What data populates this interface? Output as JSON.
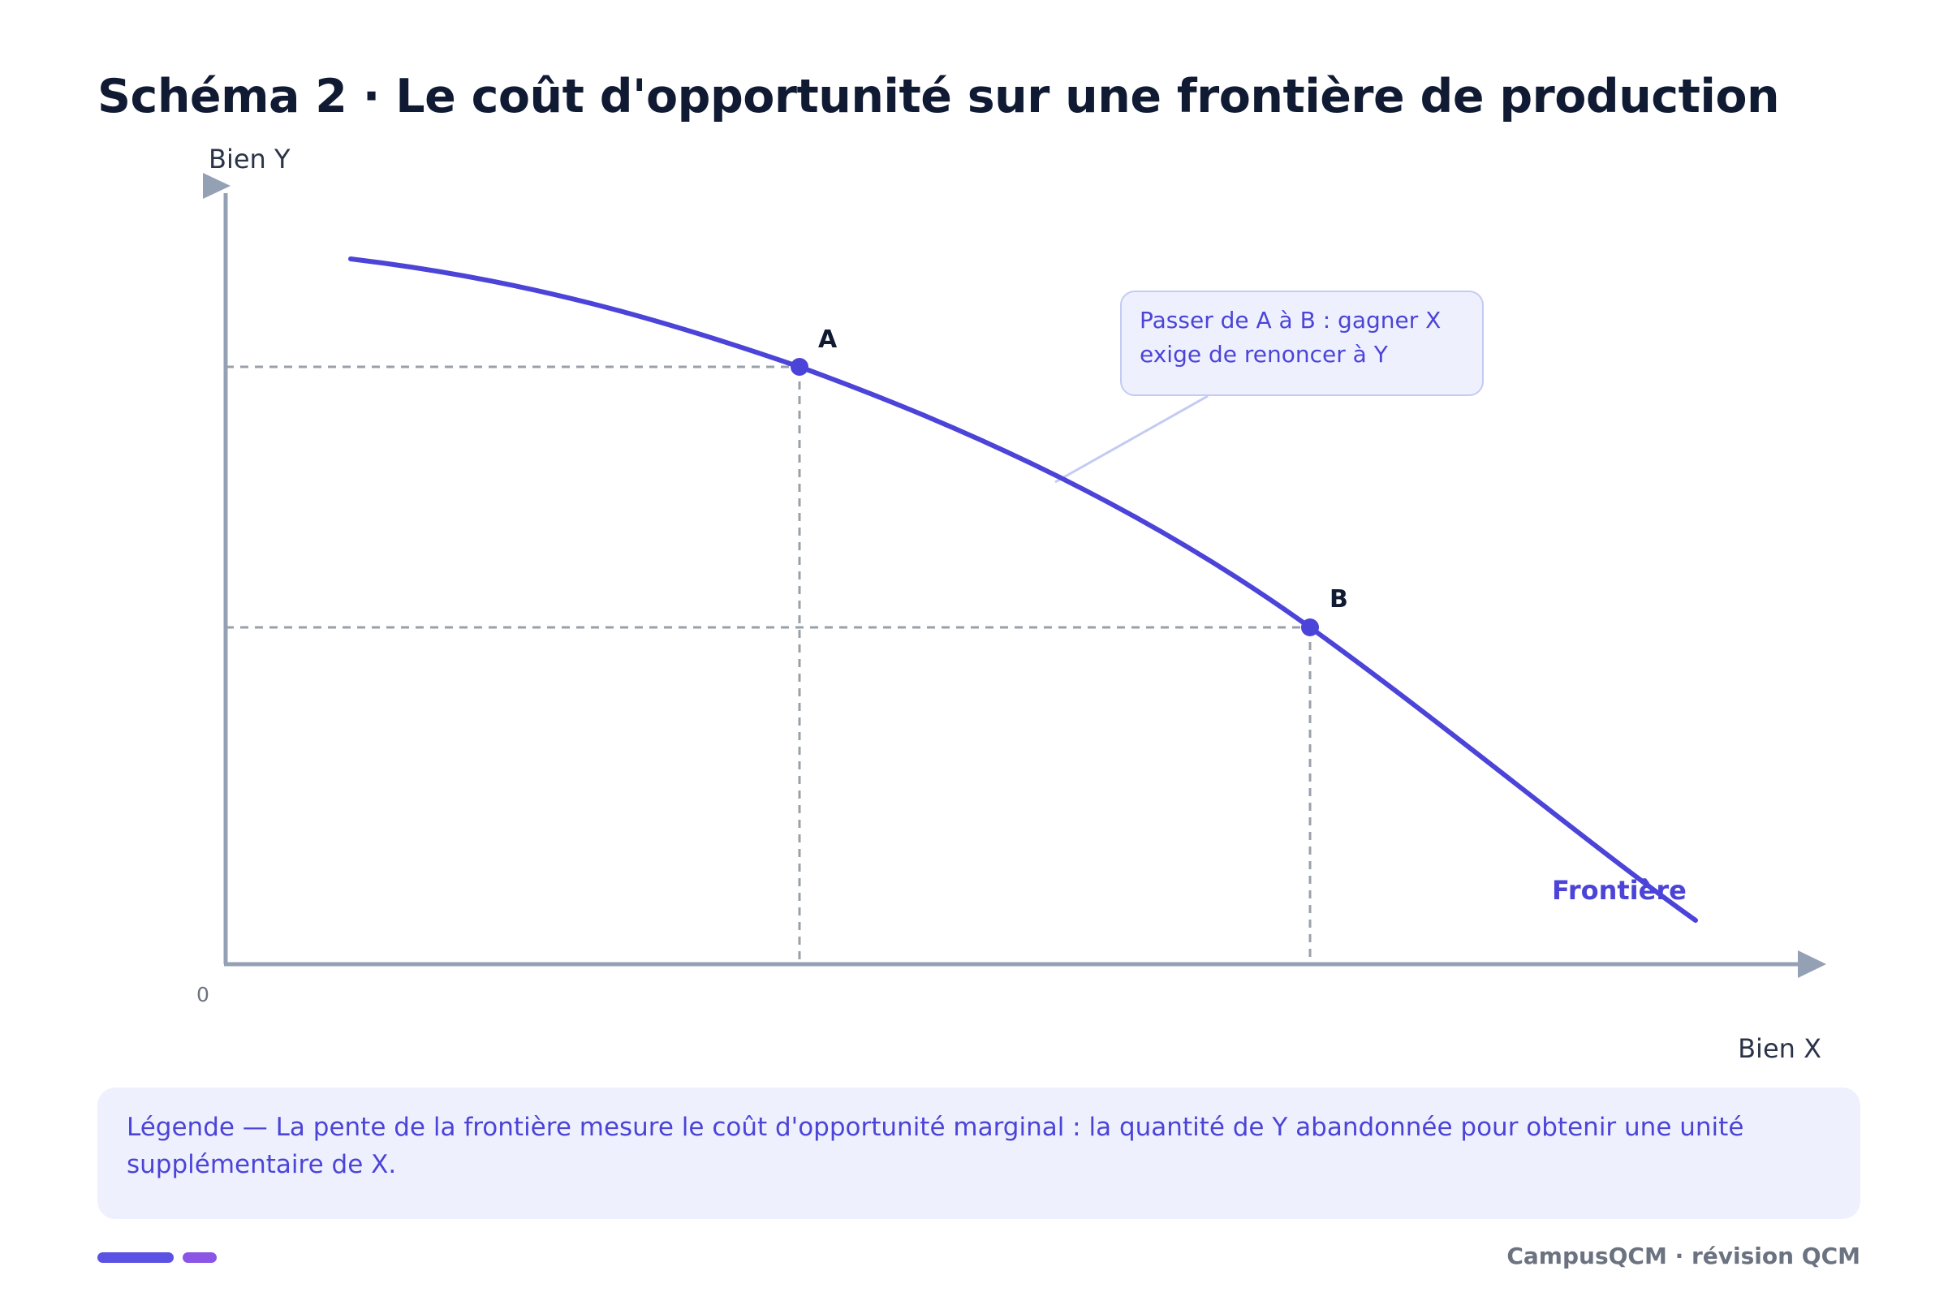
{
  "title": "Schéma 2 · Le coût d'opportunité sur une frontière de production",
  "axes": {
    "y_label": "Bien Y",
    "x_label": "Bien X",
    "origin": "0"
  },
  "points": {
    "a_label": "A",
    "b_label": "B"
  },
  "curve_label": "Frontière",
  "callout": {
    "line1": "Passer de A à B : gagner X",
    "line2": "exige de renoncer à Y"
  },
  "legend": {
    "text": "Légende — La pente de la frontière mesure le coût d'opportunité marginal : la quantité de Y abandonnée pour obtenir une unité supplémentaire de X."
  },
  "footer": "CampusQCM · révision QCM",
  "colors": {
    "curve": "#4c44d8",
    "axis": "#94a0b4",
    "guide": "#9aa0aa",
    "callout_fill": "#eef1fd",
    "callout_border": "#c3cbf3",
    "title": "#101a33"
  }
}
